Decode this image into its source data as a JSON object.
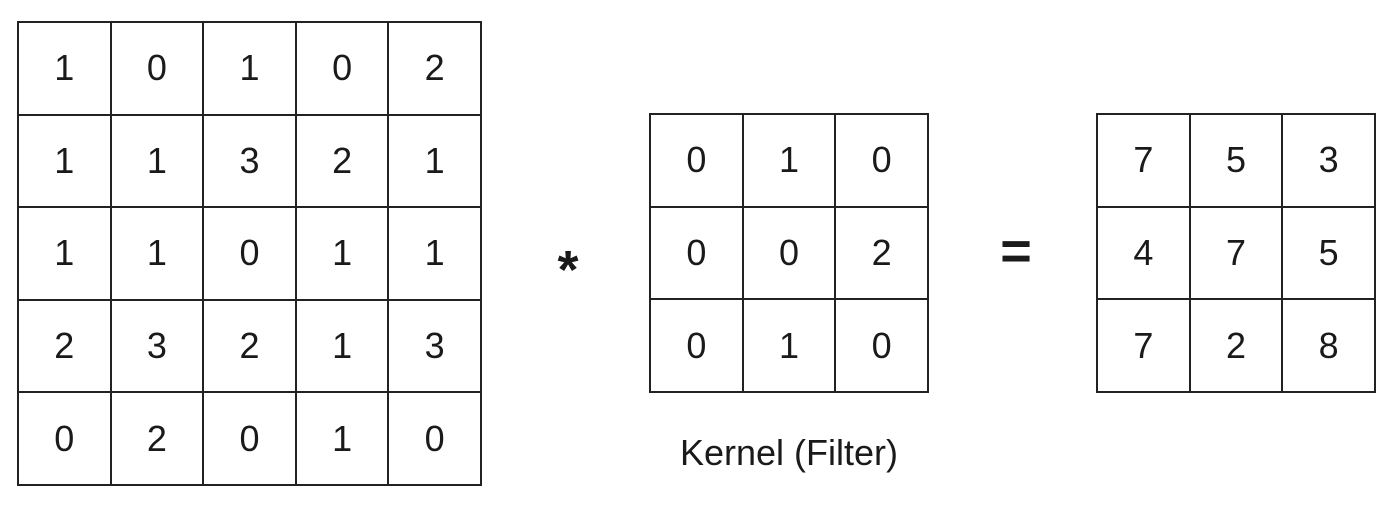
{
  "input": {
    "rows": [
      [
        "1",
        "0",
        "1",
        "0",
        "2"
      ],
      [
        "1",
        "1",
        "3",
        "2",
        "1"
      ],
      [
        "1",
        "1",
        "0",
        "1",
        "1"
      ],
      [
        "2",
        "3",
        "2",
        "1",
        "3"
      ],
      [
        "0",
        "2",
        "0",
        "1",
        "0"
      ]
    ]
  },
  "operators": {
    "convolve": "*",
    "equals": "="
  },
  "kernel": {
    "label": "Kernel (Filter)",
    "rows": [
      [
        "0",
        "1",
        "0"
      ],
      [
        "0",
        "0",
        "2"
      ],
      [
        "0",
        "1",
        "0"
      ]
    ]
  },
  "output": {
    "rows": [
      [
        "7",
        "5",
        "3"
      ],
      [
        "4",
        "7",
        "5"
      ],
      [
        "7",
        "2",
        "8"
      ]
    ]
  }
}
